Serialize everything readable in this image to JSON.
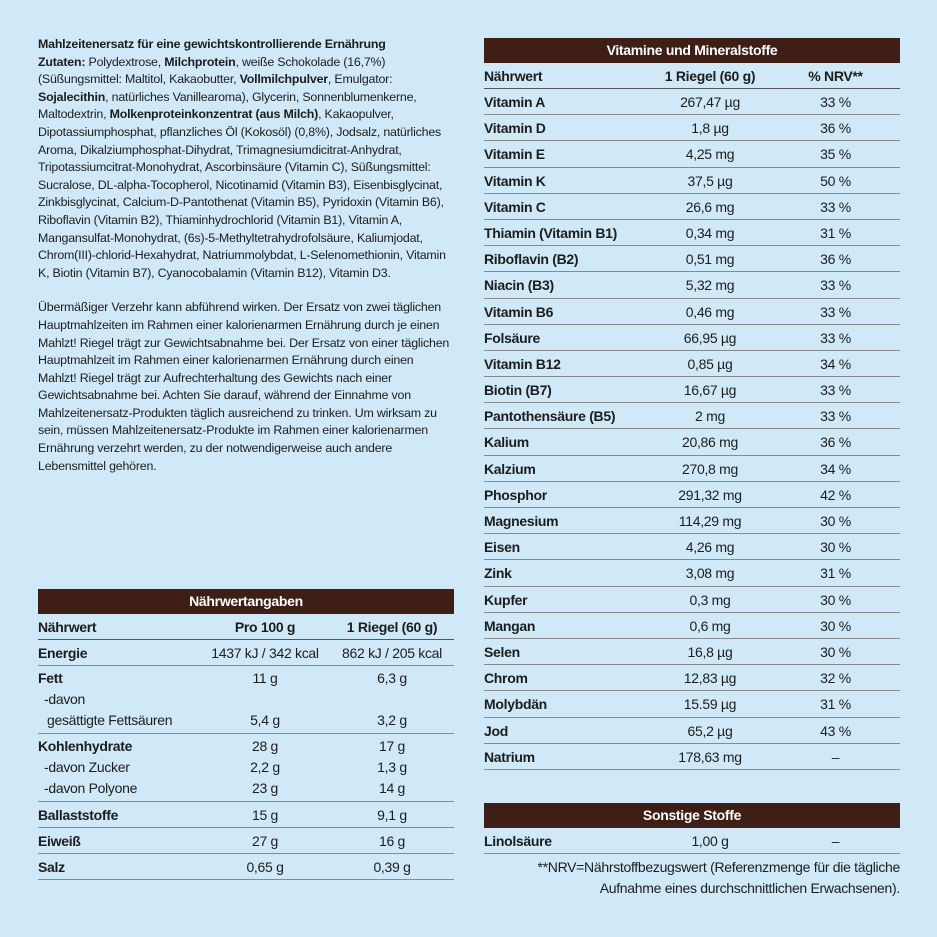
{
  "ingredients": {
    "title": "Mahlzeitenersatz für eine gewichtskontrollierende Ernährung",
    "segments": [
      {
        "text": "Zutaten:",
        "bold": true
      },
      {
        "text": " Polydextrose, ",
        "bold": false
      },
      {
        "text": "Milchprotein",
        "bold": true
      },
      {
        "text": ", weiße Schokolade (16,7%) (Süßungsmittel: Maltitol, Kakaobutter, ",
        "bold": false
      },
      {
        "text": "Vollmilchpulver",
        "bold": true
      },
      {
        "text": ", Emulgator: ",
        "bold": false
      },
      {
        "text": "Sojalecithin",
        "bold": true
      },
      {
        "text": ", natürliches Vanillearoma), Glycerin, Sonnenblumenkerne, Maltodextrin, ",
        "bold": false
      },
      {
        "text": "Molkenproteinkonzentrat (aus Milch)",
        "bold": true
      },
      {
        "text": ", Kakaopulver, Dipotassiumphosphat, pflanzliches Öl (Kokosöl) (0,8%), Jodsalz, natürliches Aroma, Dikalziumphosphat-Dihydrat, Trimagnesiumdicitrat-Anhydrat, Tripotassiumcitrat-Monohydrat, Ascorbinsäure (Vitamin C), Süßungsmittel: Sucralose, DL-alpha-Tocopherol, Nicotinamid (Vitamin B3), Eisenbisglycinat, Zinkbisglycinat, Calcium-D-Pantothenat (Vitamin B5), Pyridoxin (Vitamin B6), Riboflavin (Vitamin B2), Thiaminhydrochlorid (Vitamin B1), Vitamin A, Mangansulfat-Monohydrat, (6s)-5-Methyltetrahydrofolsäure, Kaliumjodat, Chrom(III)-chlorid-Hexahydrat, Natriummolybdat, L-Selenomethionin, Vitamin K, Biotin (Vitamin B7), Cyanocobalamin (Vitamin B12), Vitamin D3.",
        "bold": false
      }
    ]
  },
  "warning": "Übermäßiger Verzehr kann abführend wirken. Der Ersatz von zwei täglichen Hauptmahlzeiten im Rahmen einer kalorienarmen Ernährung durch je einen Mahlzt! Riegel trägt zur Gewichtsabnahme bei. Der Ersatz von einer täglichen Hauptmahlzeit im Rahmen einer kalorienarmen Ernährung durch einen Mahlzt! Riegel trägt zur Aufrechterhaltung des Gewichts nach einer Gewichtsabnahme bei. Achten Sie darauf, während der Einnahme von Mahlzeitenersatz-Produkten täglich ausreichend zu trinken. Um wirksam zu sein, müssen Mahlzeitenersatz-Produkte im Rahmen einer kalorienarmen Ernährung verzehrt werden, zu der notwendigerweise auch andere Lebensmittel gehören.",
  "nutrition": {
    "title": "Nährwertangaben",
    "header": [
      "Nährwert",
      "Pro 100 g",
      "1 Riegel (60 g)"
    ],
    "groups": [
      [
        [
          "Energie",
          "1437 kJ / 342 kcal",
          "862 kJ / 205 kcal"
        ]
      ],
      [
        [
          "Fett",
          "11 g",
          "6,3 g"
        ],
        [
          "-davon",
          null,
          null
        ],
        [
          "gesättigte Fettsäuren",
          "5,4 g",
          "3,2 g"
        ]
      ],
      [
        [
          "Kohlenhydrate",
          "28 g",
          "17 g"
        ],
        [
          "-davon Zucker",
          "2,2 g",
          "1,3 g"
        ],
        [
          "-davon Polyone",
          "23 g",
          "14 g"
        ]
      ],
      [
        [
          "Ballaststoffe",
          "15 g",
          "9,1 g"
        ]
      ],
      [
        [
          "Eiweiß",
          "27 g",
          "16 g"
        ]
      ],
      [
        [
          "Salz",
          "0,65 g",
          "0,39 g"
        ]
      ]
    ]
  },
  "vitamins": {
    "title": "Vitamine und Mineralstoffe",
    "header": [
      "Nährwert",
      "1 Riegel (60 g)",
      "% NRV**"
    ],
    "rows": [
      [
        "Vitamin A",
        "267,47 µg",
        "33 %"
      ],
      [
        "Vitamin D",
        "1,8 µg",
        "36 %"
      ],
      [
        "Vitamin E",
        "4,25 mg",
        "35 %"
      ],
      [
        "Vitamin K",
        "37,5 µg",
        "50 %"
      ],
      [
        "Vitamin C",
        "26,6 mg",
        "33 %"
      ],
      [
        "Thiamin (Vitamin B1)",
        "0,34 mg",
        "31 %"
      ],
      [
        "Riboflavin (B2)",
        "0,51 mg",
        "36 %"
      ],
      [
        "Niacin (B3)",
        "5,32 mg",
        "33 %"
      ],
      [
        "Vitamin B6",
        "0,46 mg",
        "33 %"
      ],
      [
        "Folsäure",
        "66,95 µg",
        "33 %"
      ],
      [
        "Vitamin B12",
        "0,85 µg",
        "34 %"
      ],
      [
        "Biotin (B7)",
        "16,67 µg",
        "33 %"
      ],
      [
        "Pantothensäure (B5)",
        "2 mg",
        "33 %"
      ],
      [
        "Kalium",
        "20,86 mg",
        "36 %"
      ],
      [
        "Kalzium",
        "270,8 mg",
        "34 %"
      ],
      [
        "Phosphor",
        "291,32 mg",
        "42 %"
      ],
      [
        "Magnesium",
        "114,29 mg",
        "30 %"
      ],
      [
        "Eisen",
        "4,26 mg",
        "30 %"
      ],
      [
        "Zink",
        "3,08 mg",
        "31 %"
      ],
      [
        "Kupfer",
        "0,3 mg",
        "30 %"
      ],
      [
        "Mangan",
        "0,6 mg",
        "30 %"
      ],
      [
        "Selen",
        "16,8 µg",
        "30 %"
      ],
      [
        "Chrom",
        "12,83 µg",
        "32 %"
      ],
      [
        "Molybdän",
        "15.59 µg",
        "31 %"
      ],
      [
        "Jod",
        "65,2 µg",
        "43 %"
      ],
      [
        "Natrium",
        "178,63 mg",
        "–"
      ]
    ]
  },
  "other": {
    "title": "Sonstige Stoffe",
    "rows": [
      [
        "Linolsäure",
        "1,00 g",
        "–"
      ]
    ],
    "footnote": "**NRV=Nährstoffbezugswert (Referenzmenge für die tägliche Aufnahme eines durchschnittlichen Erwachsenen)."
  }
}
